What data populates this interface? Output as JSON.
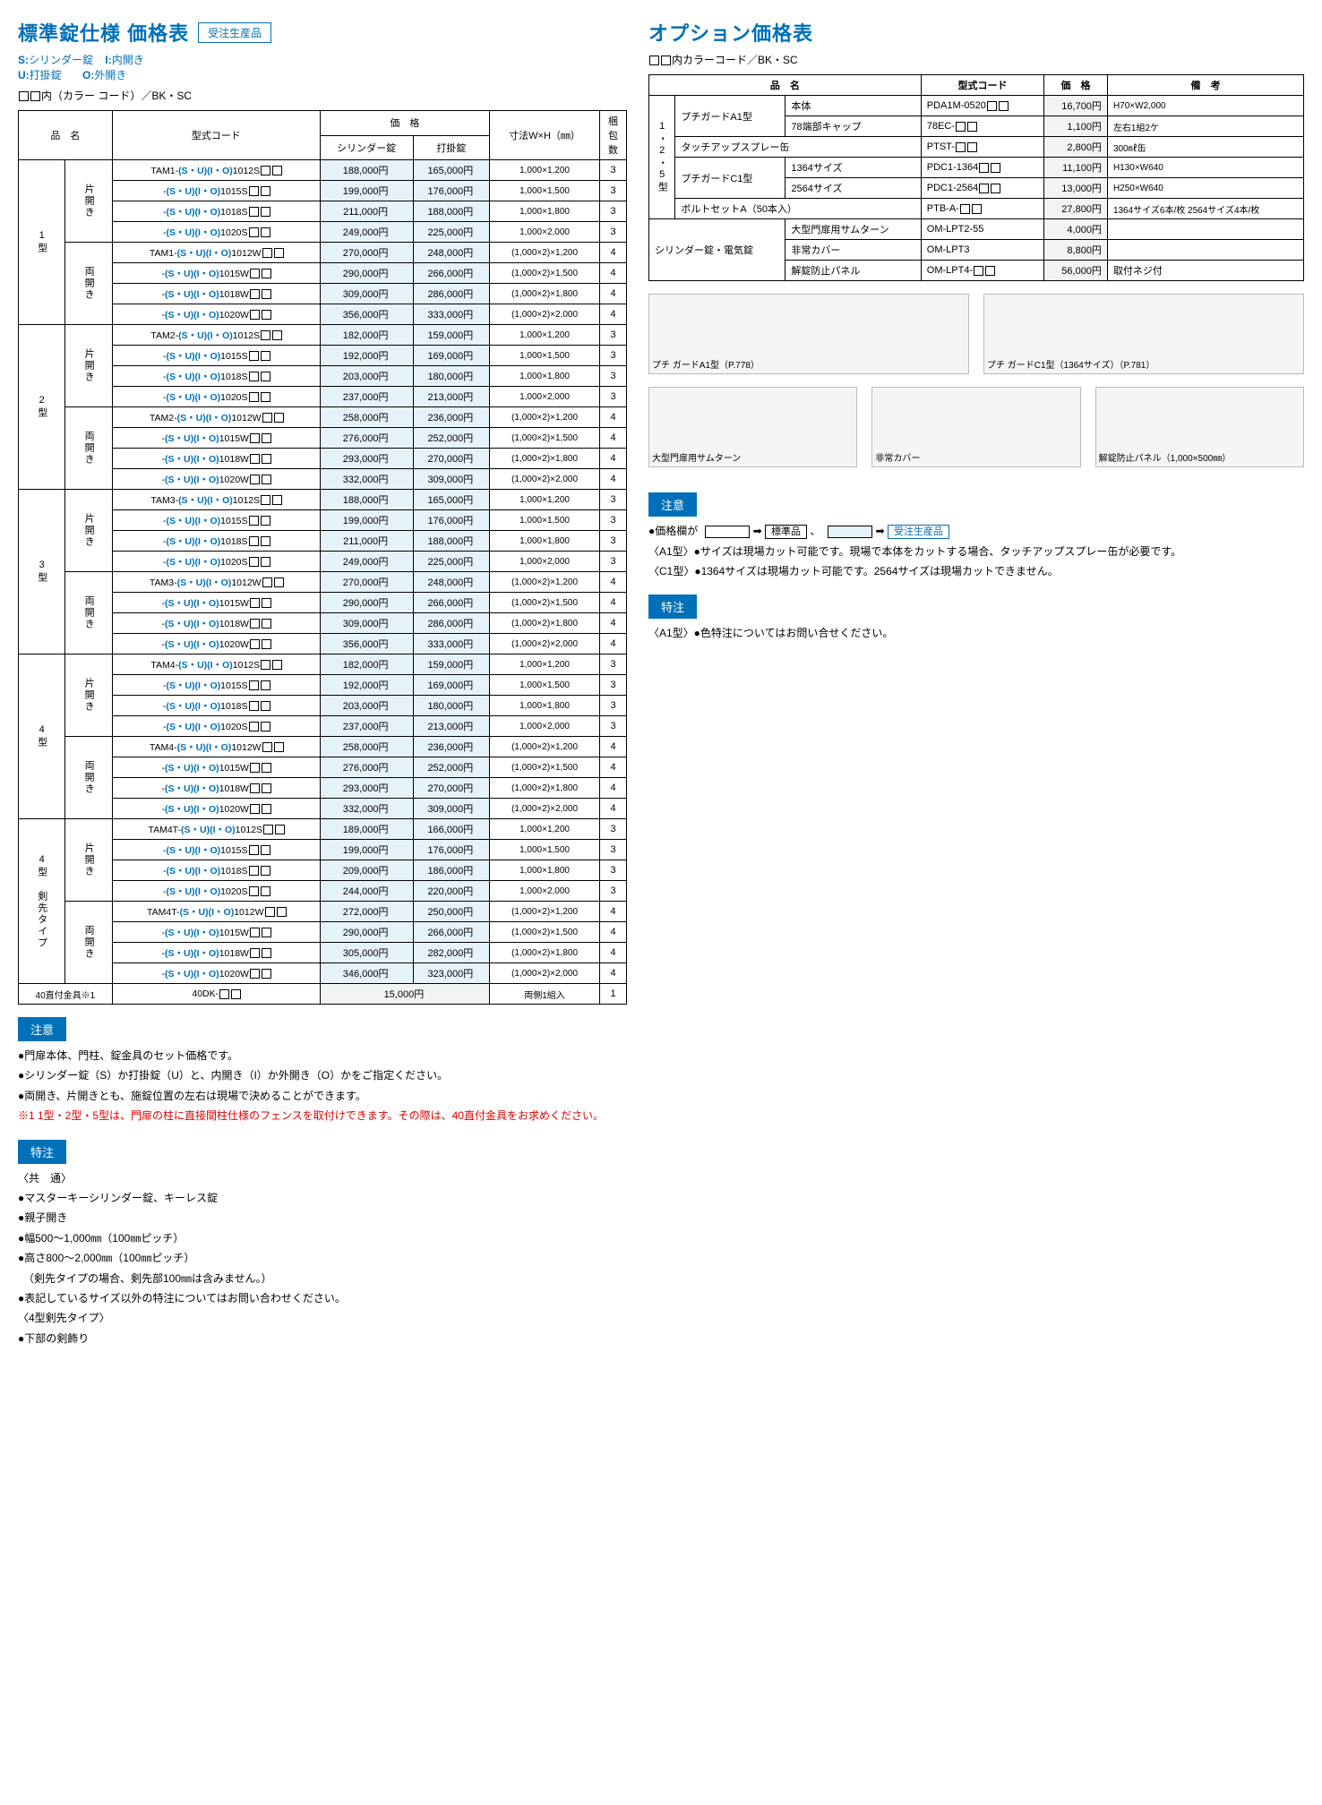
{
  "left": {
    "title": "標準錠仕様 価格表",
    "badge": "受注生産品",
    "legend": {
      "s": "S:",
      "s_label": "シリンダー錠",
      "i": "I:",
      "i_label": "内開き",
      "u": "U:",
      "u_label": "打掛錠",
      "o": "O:",
      "o_label": "外開き"
    },
    "color_line": "内（カラー コード）／BK・SC",
    "headers": {
      "name": "品　名",
      "model": "型式コード",
      "price_group": "価　格",
      "price1": "シリンダー錠",
      "price2": "打掛錠",
      "dim": "寸法W×H（㎜）",
      "pkg": "梱包数"
    },
    "groups": [
      {
        "type_label": "1型",
        "subs": [
          {
            "open_label": "片開き",
            "rows": [
              {
                "prefix": "TAM1-",
                "mid": "(S・U)(I・O)",
                "suffix": "1012S",
                "p1": "188,000円",
                "p2": "165,000円",
                "dim": "1,000×1,200",
                "pkg": "3"
              },
              {
                "prefix": "-",
                "mid": "(S・U)(I・O)",
                "suffix": "1015S",
                "p1": "199,000円",
                "p2": "176,000円",
                "dim": "1,000×1,500",
                "pkg": "3"
              },
              {
                "prefix": "-",
                "mid": "(S・U)(I・O)",
                "suffix": "1018S",
                "p1": "211,000円",
                "p2": "188,000円",
                "dim": "1,000×1,800",
                "pkg": "3"
              },
              {
                "prefix": "-",
                "mid": "(S・U)(I・O)",
                "suffix": "1020S",
                "p1": "249,000円",
                "p2": "225,000円",
                "dim": "1,000×2,000",
                "pkg": "3"
              }
            ]
          },
          {
            "open_label": "両開き",
            "rows": [
              {
                "prefix": "TAM1-",
                "mid": "(S・U)(I・O)",
                "suffix": "1012W",
                "p1": "270,000円",
                "p2": "248,000円",
                "dim": "(1,000×2)×1,200",
                "pkg": "4"
              },
              {
                "prefix": "-",
                "mid": "(S・U)(I・O)",
                "suffix": "1015W",
                "p1": "290,000円",
                "p2": "266,000円",
                "dim": "(1,000×2)×1,500",
                "pkg": "4"
              },
              {
                "prefix": "-",
                "mid": "(S・U)(I・O)",
                "suffix": "1018W",
                "p1": "309,000円",
                "p2": "286,000円",
                "dim": "(1,000×2)×1,800",
                "pkg": "4"
              },
              {
                "prefix": "-",
                "mid": "(S・U)(I・O)",
                "suffix": "1020W",
                "p1": "356,000円",
                "p2": "333,000円",
                "dim": "(1,000×2)×2,000",
                "pkg": "4"
              }
            ]
          }
        ]
      },
      {
        "type_label": "2型",
        "subs": [
          {
            "open_label": "片開き",
            "rows": [
              {
                "prefix": "TAM2-",
                "mid": "(S・U)(I・O)",
                "suffix": "1012S",
                "p1": "182,000円",
                "p2": "159,000円",
                "dim": "1,000×1,200",
                "pkg": "3"
              },
              {
                "prefix": "-",
                "mid": "(S・U)(I・O)",
                "suffix": "1015S",
                "p1": "192,000円",
                "p2": "169,000円",
                "dim": "1,000×1,500",
                "pkg": "3"
              },
              {
                "prefix": "-",
                "mid": "(S・U)(I・O)",
                "suffix": "1018S",
                "p1": "203,000円",
                "p2": "180,000円",
                "dim": "1,000×1,800",
                "pkg": "3"
              },
              {
                "prefix": "-",
                "mid": "(S・U)(I・O)",
                "suffix": "1020S",
                "p1": "237,000円",
                "p2": "213,000円",
                "dim": "1,000×2,000",
                "pkg": "3"
              }
            ]
          },
          {
            "open_label": "両開き",
            "rows": [
              {
                "prefix": "TAM2-",
                "mid": "(S・U)(I・O)",
                "suffix": "1012W",
                "p1": "258,000円",
                "p2": "236,000円",
                "dim": "(1,000×2)×1,200",
                "pkg": "4"
              },
              {
                "prefix": "-",
                "mid": "(S・U)(I・O)",
                "suffix": "1015W",
                "p1": "276,000円",
                "p2": "252,000円",
                "dim": "(1,000×2)×1,500",
                "pkg": "4"
              },
              {
                "prefix": "-",
                "mid": "(S・U)(I・O)",
                "suffix": "1018W",
                "p1": "293,000円",
                "p2": "270,000円",
                "dim": "(1,000×2)×1,800",
                "pkg": "4"
              },
              {
                "prefix": "-",
                "mid": "(S・U)(I・O)",
                "suffix": "1020W",
                "p1": "332,000円",
                "p2": "309,000円",
                "dim": "(1,000×2)×2,000",
                "pkg": "4"
              }
            ]
          }
        ]
      },
      {
        "type_label": "3型",
        "subs": [
          {
            "open_label": "片開き",
            "rows": [
              {
                "prefix": "TAM3-",
                "mid": "(S・U)(I・O)",
                "suffix": "1012S",
                "p1": "188,000円",
                "p2": "165,000円",
                "dim": "1,000×1,200",
                "pkg": "3"
              },
              {
                "prefix": "-",
                "mid": "(S・U)(I・O)",
                "suffix": "1015S",
                "p1": "199,000円",
                "p2": "176,000円",
                "dim": "1,000×1,500",
                "pkg": "3"
              },
              {
                "prefix": "-",
                "mid": "(S・U)(I・O)",
                "suffix": "1018S",
                "p1": "211,000円",
                "p2": "188,000円",
                "dim": "1,000×1,800",
                "pkg": "3"
              },
              {
                "prefix": "-",
                "mid": "(S・U)(I・O)",
                "suffix": "1020S",
                "p1": "249,000円",
                "p2": "225,000円",
                "dim": "1,000×2,000",
                "pkg": "3"
              }
            ]
          },
          {
            "open_label": "両開き",
            "rows": [
              {
                "prefix": "TAM3-",
                "mid": "(S・U)(I・O)",
                "suffix": "1012W",
                "p1": "270,000円",
                "p2": "248,000円",
                "dim": "(1,000×2)×1,200",
                "pkg": "4"
              },
              {
                "prefix": "-",
                "mid": "(S・U)(I・O)",
                "suffix": "1015W",
                "p1": "290,000円",
                "p2": "266,000円",
                "dim": "(1,000×2)×1,500",
                "pkg": "4"
              },
              {
                "prefix": "-",
                "mid": "(S・U)(I・O)",
                "suffix": "1018W",
                "p1": "309,000円",
                "p2": "286,000円",
                "dim": "(1,000×2)×1,800",
                "pkg": "4"
              },
              {
                "prefix": "-",
                "mid": "(S・U)(I・O)",
                "suffix": "1020W",
                "p1": "356,000円",
                "p2": "333,000円",
                "dim": "(1,000×2)×2,000",
                "pkg": "4"
              }
            ]
          }
        ]
      },
      {
        "type_label": "4型",
        "subs": [
          {
            "open_label": "片開き",
            "rows": [
              {
                "prefix": "TAM4-",
                "mid": "(S・U)(I・O)",
                "suffix": "1012S",
                "p1": "182,000円",
                "p2": "159,000円",
                "dim": "1,000×1,200",
                "pkg": "3"
              },
              {
                "prefix": "-",
                "mid": "(S・U)(I・O)",
                "suffix": "1015S",
                "p1": "192,000円",
                "p2": "169,000円",
                "dim": "1,000×1,500",
                "pkg": "3"
              },
              {
                "prefix": "-",
                "mid": "(S・U)(I・O)",
                "suffix": "1018S",
                "p1": "203,000円",
                "p2": "180,000円",
                "dim": "1,000×1,800",
                "pkg": "3"
              },
              {
                "prefix": "-",
                "mid": "(S・U)(I・O)",
                "suffix": "1020S",
                "p1": "237,000円",
                "p2": "213,000円",
                "dim": "1,000×2,000",
                "pkg": "3"
              }
            ]
          },
          {
            "open_label": "両開き",
            "rows": [
              {
                "prefix": "TAM4-",
                "mid": "(S・U)(I・O)",
                "suffix": "1012W",
                "p1": "258,000円",
                "p2": "236,000円",
                "dim": "(1,000×2)×1,200",
                "pkg": "4"
              },
              {
                "prefix": "-",
                "mid": "(S・U)(I・O)",
                "suffix": "1015W",
                "p1": "276,000円",
                "p2": "252,000円",
                "dim": "(1,000×2)×1,500",
                "pkg": "4"
              },
              {
                "prefix": "-",
                "mid": "(S・U)(I・O)",
                "suffix": "1018W",
                "p1": "293,000円",
                "p2": "270,000円",
                "dim": "(1,000×2)×1,800",
                "pkg": "4"
              },
              {
                "prefix": "-",
                "mid": "(S・U)(I・O)",
                "suffix": "1020W",
                "p1": "332,000円",
                "p2": "309,000円",
                "dim": "(1,000×2)×2,000",
                "pkg": "4"
              }
            ]
          }
        ]
      },
      {
        "type_label": "4型 剣先タイプ",
        "subs": [
          {
            "open_label": "片開き",
            "rows": [
              {
                "prefix": "TAM4T-",
                "mid": "(S・U)(I・O)",
                "suffix": "1012S",
                "p1": "189,000円",
                "p2": "166,000円",
                "dim": "1,000×1,200",
                "pkg": "3"
              },
              {
                "prefix": "-",
                "mid": "(S・U)(I・O)",
                "suffix": "1015S",
                "p1": "199,000円",
                "p2": "176,000円",
                "dim": "1,000×1,500",
                "pkg": "3"
              },
              {
                "prefix": "-",
                "mid": "(S・U)(I・O)",
                "suffix": "1018S",
                "p1": "209,000円",
                "p2": "186,000円",
                "dim": "1,000×1,800",
                "pkg": "3"
              },
              {
                "prefix": "-",
                "mid": "(S・U)(I・O)",
                "suffix": "1020S",
                "p1": "244,000円",
                "p2": "220,000円",
                "dim": "1,000×2,000",
                "pkg": "3"
              }
            ]
          },
          {
            "open_label": "両開き",
            "rows": [
              {
                "prefix": "TAM4T-",
                "mid": "(S・U)(I・O)",
                "suffix": "1012W",
                "p1": "272,000円",
                "p2": "250,000円",
                "dim": "(1,000×2)×1,200",
                "pkg": "4"
              },
              {
                "prefix": "-",
                "mid": "(S・U)(I・O)",
                "suffix": "1015W",
                "p1": "290,000円",
                "p2": "266,000円",
                "dim": "(1,000×2)×1,500",
                "pkg": "4"
              },
              {
                "prefix": "-",
                "mid": "(S・U)(I・O)",
                "suffix": "1018W",
                "p1": "305,000円",
                "p2": "282,000円",
                "dim": "(1,000×2)×1,800",
                "pkg": "4"
              },
              {
                "prefix": "-",
                "mid": "(S・U)(I・O)",
                "suffix": "1020W",
                "p1": "346,000円",
                "p2": "323,000円",
                "dim": "(1,000×2)×2,000",
                "pkg": "4"
              }
            ]
          }
        ]
      }
    ],
    "footer_row": {
      "name": "40直付金具※1",
      "model": "40DK-",
      "price": "15,000円",
      "dim": "両側1組入",
      "pkg": "1"
    },
    "attention_label": "注意",
    "attention": [
      "●門扉本体、門柱、錠金具のセット価格です。",
      "●シリンダー錠（S）か打掛錠（U）と、内開き（I）か外開き（O）かをご指定ください。",
      "●両開き、片開きとも、施錠位置の左右は現場で決めることができます。",
      "※1 1型・2型・5型は、門扉の柱に直接間柱仕様のフェンスを取付けできます。その際は、40直付金具をお求めください。"
    ],
    "special_label": "特注",
    "special_notes": [
      "〈共　通〉",
      "●マスターキーシリンダー錠、キーレス錠",
      "●親子開き",
      "●幅500〜1,000㎜（100㎜ピッチ）",
      "●高さ800〜2,000㎜（100㎜ピッチ）",
      "　（剣先タイプの場合、剣先部100㎜は含みません。）",
      "●表記しているサイズ以外の特注についてはお問い合わせください。",
      "〈4型剣先タイプ〉",
      "●下部の剣飾り"
    ]
  },
  "right": {
    "title": "オプション価格表",
    "color_line": "内カラーコード／BK・SC",
    "headers": {
      "name": "品　名",
      "model": "型式コード",
      "price": "価　格",
      "note": "備　考"
    },
    "type_label": "1・2・5型",
    "rows1": [
      {
        "cat": "プチガードA1型",
        "sub": "本体",
        "model": "PDA1M-0520",
        "price": "16,700円",
        "note": "H70×W2,000"
      },
      {
        "cat": "",
        "sub": "78端部キャップ",
        "model": "78EC-",
        "price": "1,100円",
        "note": "左右1組2ケ"
      },
      {
        "cat": "タッチアップスプレー缶",
        "sub": "",
        "model": "PTST-",
        "price": "2,800円",
        "note": "300㎖缶"
      },
      {
        "cat": "プチガードC1型",
        "sub": "1364サイズ",
        "model": "PDC1-1364",
        "price": "11,100円",
        "note": "H130×W640"
      },
      {
        "cat": "",
        "sub": "2564サイズ",
        "model": "PDC1-2564",
        "price": "13,000円",
        "note": "H250×W640"
      },
      {
        "cat": "ボルトセットA（50本入）",
        "sub": "",
        "model": "PTB-A-",
        "price": "27,800円",
        "note": "1364サイズ6本/枚 2564サイズ4本/枚"
      }
    ],
    "rows2_label": "シリンダー錠・電気錠",
    "rows2": [
      {
        "sub": "大型門扉用サムターン",
        "model": "OM-LPT2-55",
        "price": "4,000円",
        "note": ""
      },
      {
        "sub": "非常カバー",
        "model": "OM-LPT3",
        "price": "8,800円",
        "note": ""
      },
      {
        "sub": "解錠防止パネル",
        "model": "OM-LPT4-",
        "price": "56,000円",
        "note": "取付ネジ付"
      }
    ],
    "img_captions": {
      "a1": "プチ ガードA1型（P.778）",
      "c1": "プチ ガードC1型（1364サイズ）（P.781）",
      "thumb1": "大型門扉用サムターン",
      "thumb2": "非常カバー",
      "thumb3": "解錠防止パネル（1,000×500㎜）"
    },
    "attention_label": "注意",
    "attention_line1_a": "●価格欄が",
    "attention_line1_b": "標準品",
    "attention_line1_c": "受注生産品",
    "attention2": "〈A1型〉●サイズは現場カット可能です。現場で本体をカットする場合、タッチアップスプレー缶が必要です。",
    "attention3": "〈C1型〉●1364サイズは現場カット可能です。2564サイズは現場カットできません。",
    "special_label": "特注",
    "special1": "〈A1型〉●色特注についてはお問い合せください。"
  }
}
